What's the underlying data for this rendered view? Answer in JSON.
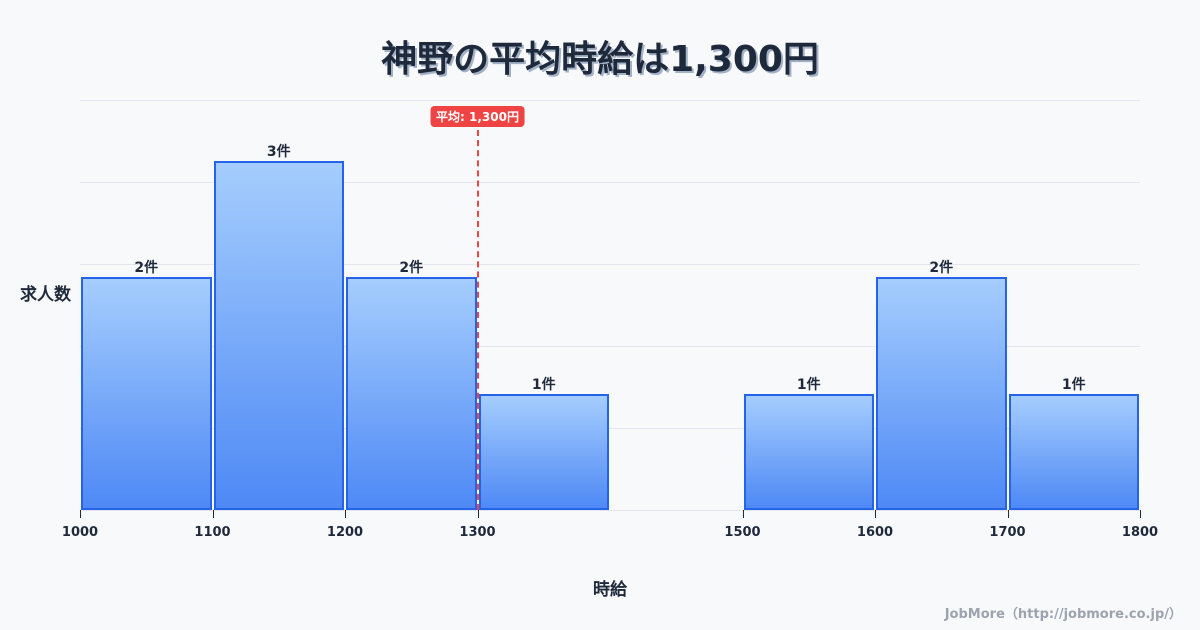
{
  "title": "神野の平均時給は1,300円",
  "mean_badge": "平均: 1,300円",
  "y_axis_label": "求人数",
  "x_axis_label": "時給",
  "credit": "JobMore（http://jobmore.co.jp/）",
  "colors": {
    "bar_border": "#2563eb",
    "bar_top": "#a5cdfd",
    "bar_bottom": "#4e89f5",
    "mean_line": "#ef4444",
    "text": "#1e293b",
    "background": "#f8f9fb"
  },
  "chart_data": {
    "type": "bar",
    "title": "神野の平均時給は1,300円",
    "xlabel": "時給",
    "ylabel": "求人数",
    "bins": [
      {
        "start": 1000,
        "end": 1100,
        "count": 2,
        "label": "2件"
      },
      {
        "start": 1100,
        "end": 1200,
        "count": 3,
        "label": "3件"
      },
      {
        "start": 1200,
        "end": 1300,
        "count": 2,
        "label": "2件"
      },
      {
        "start": 1300,
        "end": 1400,
        "count": 1,
        "label": "1件"
      },
      {
        "start": 1500,
        "end": 1600,
        "count": 1,
        "label": "1件"
      },
      {
        "start": 1600,
        "end": 1700,
        "count": 2,
        "label": "2件"
      },
      {
        "start": 1700,
        "end": 1800,
        "count": 1,
        "label": "1件"
      }
    ],
    "categories": [
      "1000-1100",
      "1100-1200",
      "1200-1300",
      "1300-1400",
      "1500-1600",
      "1600-1700",
      "1700-1800"
    ],
    "values": [
      2,
      3,
      2,
      1,
      1,
      2,
      1
    ],
    "x_ticks": [
      "1000",
      "1100",
      "1200",
      "1300",
      "1500",
      "1600",
      "1700",
      "1800"
    ],
    "x_tick_values": [
      1000,
      1100,
      1200,
      1300,
      1500,
      1600,
      1700,
      1800
    ],
    "xlim": [
      1000,
      1800
    ],
    "ylim": [
      0,
      3.5
    ],
    "mean": 1300,
    "mean_label": "平均: 1,300円",
    "grid": true,
    "legend": "none"
  }
}
